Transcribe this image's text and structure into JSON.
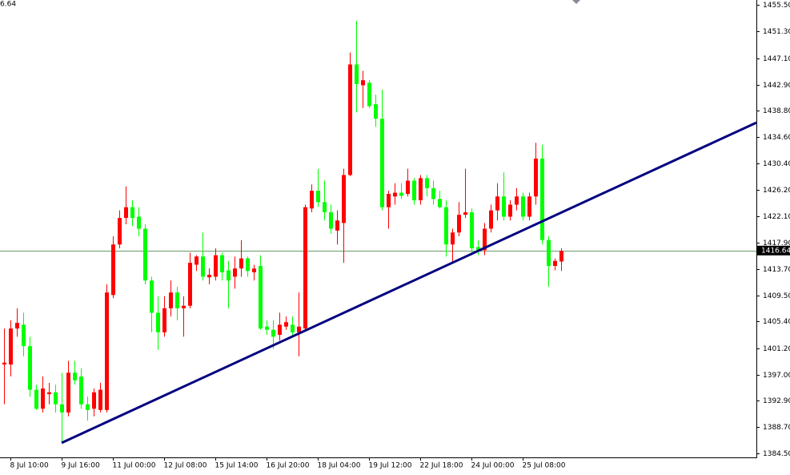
{
  "chart_data": {
    "type": "candlestick",
    "corner_text": "6.64",
    "up_color": "#ff0000",
    "down_color": "#00ff00",
    "categories": [
      null,
      "8 Jul 10:00",
      null,
      null,
      null,
      null,
      null,
      null,
      null,
      "9 Jul 16:00",
      null,
      null,
      null,
      null,
      null,
      null,
      null,
      "11 Jul 00:00",
      null,
      null,
      null,
      null,
      null,
      null,
      null,
      "12 Jul 08:00",
      null,
      null,
      null,
      null,
      null,
      null,
      null,
      "15 Jul 14:00",
      null,
      null,
      null,
      null,
      null,
      null,
      null,
      "16 Jul 20:00",
      null,
      null,
      null,
      null,
      null,
      null,
      null,
      "18 Jul 04:00",
      null,
      null,
      null,
      null,
      null,
      null,
      null,
      "19 Jul 12:00",
      null,
      null,
      null,
      null,
      null,
      null,
      null,
      "22 Jul 18:00",
      null,
      null,
      null,
      null,
      null,
      null,
      null,
      "24 Jul 00:00",
      null,
      null,
      null,
      null,
      null,
      null,
      null,
      "25 Jul 08:00",
      null,
      null,
      null,
      null,
      null,
      null
    ],
    "open": [
      1398.6,
      1398.6,
      1404.3,
      1404.9,
      1401.5,
      1394.6,
      1391.6,
      1393.9,
      1394.2,
      1392.3,
      1391.0,
      1397.3,
      1396.7,
      1392.3,
      1391.6,
      1391.4,
      1391.4,
      1409.6,
      1417.6,
      1421.8,
      1423.5,
      1422.0,
      1420.1,
      1411.9,
      1406.8,
      1403.7,
      1407.5,
      1410.0,
      1407.5,
      1407.9,
      1414.4,
      1415.7,
      1412.4,
      1412.5,
      1415.9,
      1413.5,
      1412.5,
      1413.8,
      1415.4,
      1413.2,
      1414.2,
      1404.6,
      1404.1,
      1403.3,
      1404.6,
      1404.9,
      1403.7,
      1404.3,
      1423.3,
      1426.1,
      1424.3,
      1422.7,
      1419.8,
      1421.0,
      1428.6,
      1446.1,
      1442.8,
      1443.2,
      1439.8,
      1437.5,
      1423.5,
      1425.2,
      1425.8,
      1425.6,
      1427.7,
      1424.6,
      1428.1,
      1426.5,
      1424.8,
      1423.5,
      1417.6,
      1419.5,
      1422.3,
      1422.7,
      1417.2,
      1416.7,
      1420.1,
      1423.0,
      1425.2,
      1422.0,
      1423.9,
      1425.2,
      1422.0,
      1425.2,
      1431.2,
      1418.3,
      1414.2,
      1414.9
    ],
    "high": [
      1404.3,
      1405.6,
      1407.5,
      1406.8,
      1403.0,
      1395.4,
      1396.7,
      1395.7,
      1395.4,
      1397.3,
      1399.2,
      1399.2,
      1398.0,
      1393.5,
      1394.8,
      1395.7,
      1411.3,
      1418.9,
      1423.0,
      1426.8,
      1424.6,
      1423.5,
      1420.8,
      1412.5,
      1409.4,
      1409.4,
      1411.9,
      1410.9,
      1409.4,
      1416.3,
      1415.9,
      1419.5,
      1413.8,
      1417.0,
      1416.3,
      1415.0,
      1415.7,
      1418.3,
      1415.7,
      1414.4,
      1415.9,
      1405.6,
      1405.6,
      1406.8,
      1406.2,
      1406.2,
      1410.0,
      1423.9,
      1427.1,
      1429.6,
      1427.7,
      1423.9,
      1423.0,
      1429.6,
      1448.0,
      1453.0,
      1445.1,
      1443.6,
      1441.3,
      1442.1,
      1426.1,
      1427.3,
      1427.3,
      1429.6,
      1428.1,
      1428.6,
      1428.6,
      1427.7,
      1426.1,
      1424.6,
      1420.1,
      1424.3,
      1429.6,
      1423.3,
      1418.3,
      1421.0,
      1423.9,
      1427.3,
      1429.0,
      1424.6,
      1426.5,
      1425.8,
      1425.8,
      1433.7,
      1433.4,
      1418.9,
      1415.4,
      1417.0
    ],
    "low": [
      1392.3,
      1396.7,
      1403.0,
      1399.9,
      1393.5,
      1391.4,
      1391.0,
      1392.3,
      1391.0,
      1386.2,
      1390.4,
      1395.4,
      1391.6,
      1389.7,
      1390.4,
      1391.0,
      1391.0,
      1409.1,
      1417.0,
      1420.8,
      1420.5,
      1418.9,
      1411.3,
      1403.7,
      1400.9,
      1403.0,
      1406.2,
      1405.6,
      1403.0,
      1407.5,
      1413.4,
      1411.9,
      1411.3,
      1411.9,
      1411.9,
      1407.5,
      1410.6,
      1412.5,
      1412.5,
      1411.9,
      1404.1,
      1403.3,
      1401.1,
      1402.4,
      1404.1,
      1403.0,
      1399.9,
      1404.1,
      1422.7,
      1423.5,
      1421.4,
      1419.3,
      1417.6,
      1414.7,
      1428.4,
      1438.5,
      1439.2,
      1439.2,
      1436.2,
      1423.0,
      1420.1,
      1423.9,
      1424.8,
      1425.2,
      1423.9,
      1423.9,
      1425.2,
      1423.9,
      1423.3,
      1415.7,
      1414.7,
      1418.9,
      1421.8,
      1415.9,
      1415.9,
      1415.9,
      1419.5,
      1421.4,
      1421.4,
      1421.4,
      1423.0,
      1421.4,
      1421.4,
      1423.9,
      1417.6,
      1410.9,
      1413.5,
      1413.4
    ],
    "close": [
      1398.9,
      1404.3,
      1405.2,
      1401.5,
      1394.6,
      1391.6,
      1394.8,
      1394.2,
      1392.3,
      1391.0,
      1397.3,
      1396.1,
      1392.3,
      1391.4,
      1394.2,
      1394.6,
      1410.0,
      1417.6,
      1421.8,
      1423.5,
      1421.8,
      1420.1,
      1411.9,
      1406.8,
      1403.7,
      1407.5,
      1410.0,
      1407.5,
      1407.9,
      1414.7,
      1415.7,
      1412.5,
      1412.8,
      1415.9,
      1413.2,
      1411.9,
      1413.8,
      1415.4,
      1413.4,
      1413.8,
      1404.3,
      1404.1,
      1403.0,
      1404.9,
      1405.3,
      1403.7,
      1404.6,
      1423.5,
      1426.1,
      1424.3,
      1422.7,
      1420.1,
      1421.4,
      1428.6,
      1446.1,
      1443.0,
      1443.6,
      1439.5,
      1437.5,
      1423.5,
      1425.6,
      1425.8,
      1425.3,
      1427.7,
      1424.6,
      1428.1,
      1426.5,
      1424.8,
      1423.5,
      1417.6,
      1419.5,
      1422.3,
      1422.7,
      1417.0,
      1416.7,
      1420.1,
      1423.0,
      1425.2,
      1422.0,
      1423.9,
      1425.2,
      1422.0,
      1425.2,
      1431.2,
      1418.3,
      1414.2,
      1415.0,
      1416.6
    ],
    "ylim": [
      1383.9,
      1456.3
    ],
    "yticks": [
      {
        "value": 1384.5,
        "label": "1384.50"
      },
      {
        "value": 1388.7,
        "label": "1388.70"
      },
      {
        "value": 1392.9,
        "label": "1392.90"
      },
      {
        "value": 1397.0,
        "label": "1397.00"
      },
      {
        "value": 1401.2,
        "label": "1401.20"
      },
      {
        "value": 1405.4,
        "label": "1405.40"
      },
      {
        "value": 1409.5,
        "label": "1409.50"
      },
      {
        "value": 1413.7,
        "label": "1413.70"
      },
      {
        "value": 1417.9,
        "label": "1417.90"
      },
      {
        "value": 1422.1,
        "label": "1422.10"
      },
      {
        "value": 1426.2,
        "label": "1426.20"
      },
      {
        "value": 1430.4,
        "label": "1430.40"
      },
      {
        "value": 1434.6,
        "label": "1434.60"
      },
      {
        "value": 1438.8,
        "label": "1438.80"
      },
      {
        "value": 1442.9,
        "label": "1442.90"
      },
      {
        "value": 1447.1,
        "label": "1447.10"
      },
      {
        "value": 1451.3,
        "label": "1451.30"
      },
      {
        "value": 1455.5,
        "label": "1455.50"
      }
    ],
    "current_price": {
      "value": 1416.64,
      "label": "1416.64",
      "color": "#6a9a6a"
    },
    "trendline": {
      "color": "#000080",
      "x": [
        9,
        73
      ],
      "y": [
        1386.2,
        1416.1
      ]
    }
  }
}
